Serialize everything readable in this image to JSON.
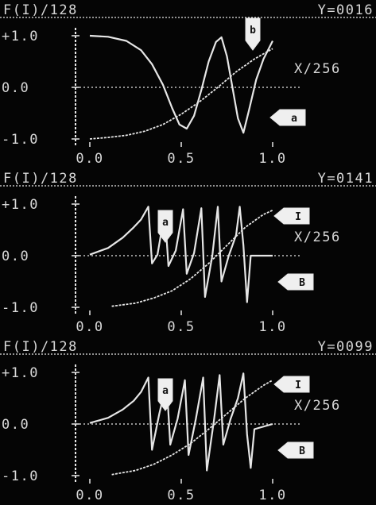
{
  "colors": {
    "background": "#050505",
    "trace": "#e6e6e6",
    "text": "#d8d8d8",
    "marker_fill": "#efefef",
    "marker_text": "#111111"
  },
  "chart_data": [
    {
      "type": "line",
      "header_left": "F(I)/128",
      "header_right": "Y=0016",
      "right_label": "X/256",
      "y_ticks": [
        "+1.0",
        "0.0",
        "-1.0"
      ],
      "x_ticks": [
        "0.0",
        "0.5",
        "1.0"
      ],
      "xlim": [
        0,
        1
      ],
      "ylim": [
        -1,
        1
      ],
      "grid": false,
      "markers": [
        {
          "label": "b"
        },
        {
          "label": "a"
        }
      ],
      "series": [
        {
          "name": "b",
          "role": "signal",
          "points": [
            [
              0,
              1
            ],
            [
              0.1,
              0.98
            ],
            [
              0.2,
              0.9
            ],
            [
              0.28,
              0.72
            ],
            [
              0.34,
              0.45
            ],
            [
              0.4,
              0.05
            ],
            [
              0.45,
              -0.4
            ],
            [
              0.49,
              -0.72
            ],
            [
              0.53,
              -0.8
            ],
            [
              0.57,
              -0.55
            ],
            [
              0.61,
              -0.05
            ],
            [
              0.65,
              0.5
            ],
            [
              0.69,
              0.88
            ],
            [
              0.72,
              0.97
            ],
            [
              0.75,
              0.6
            ],
            [
              0.78,
              0
            ],
            [
              0.81,
              -0.6
            ],
            [
              0.84,
              -0.88
            ],
            [
              0.87,
              -0.45
            ],
            [
              0.91,
              0.15
            ],
            [
              0.95,
              0.55
            ],
            [
              1,
              0.9
            ]
          ]
        },
        {
          "name": "a",
          "role": "ramp",
          "points": [
            [
              0,
              -1
            ],
            [
              0.1,
              -0.97
            ],
            [
              0.2,
              -0.93
            ],
            [
              0.3,
              -0.85
            ],
            [
              0.4,
              -0.72
            ],
            [
              0.5,
              -0.52
            ],
            [
              0.6,
              -0.28
            ],
            [
              0.7,
              0
            ],
            [
              0.8,
              0.3
            ],
            [
              0.9,
              0.55
            ],
            [
              1,
              0.75
            ]
          ]
        }
      ]
    },
    {
      "type": "line",
      "header_left": "F(I)/128",
      "header_right": "Y=0141",
      "right_label": "X/256",
      "y_ticks": [
        "+1.0",
        "0.0",
        "-1.0"
      ],
      "x_ticks": [
        "0.0",
        "0.5",
        "1.0"
      ],
      "xlim": [
        0,
        1
      ],
      "ylim": [
        -1,
        1
      ],
      "grid": false,
      "markers": [
        {
          "label": "a"
        },
        {
          "label": "I"
        },
        {
          "label": "B"
        }
      ],
      "series": [
        {
          "name": "a",
          "role": "signal",
          "points": [
            [
              0,
              0.02
            ],
            [
              0.1,
              0.15
            ],
            [
              0.18,
              0.35
            ],
            [
              0.24,
              0.55
            ],
            [
              0.28,
              0.7
            ],
            [
              0.32,
              0.95
            ],
            [
              0.34,
              -0.15
            ],
            [
              0.37,
              0.02
            ],
            [
              0.41,
              0.85
            ],
            [
              0.43,
              -0.2
            ],
            [
              0.47,
              0.1
            ],
            [
              0.51,
              0.9
            ],
            [
              0.53,
              -0.35
            ],
            [
              0.57,
              0.05
            ],
            [
              0.61,
              0.92
            ],
            [
              0.63,
              -0.8
            ],
            [
              0.67,
              0
            ],
            [
              0.7,
              0.95
            ],
            [
              0.72,
              -0.5
            ],
            [
              0.76,
              0
            ],
            [
              0.8,
              0.4
            ],
            [
              0.82,
              0.95
            ],
            [
              0.84,
              0.2
            ],
            [
              0.86,
              -0.9
            ],
            [
              0.88,
              0
            ],
            [
              1,
              0
            ]
          ]
        },
        {
          "name": "I",
          "role": "ramp",
          "points": [
            [
              0.12,
              -0.98
            ],
            [
              0.25,
              -0.92
            ],
            [
              0.35,
              -0.82
            ],
            [
              0.45,
              -0.68
            ],
            [
              0.55,
              -0.45
            ],
            [
              0.65,
              -0.15
            ],
            [
              0.75,
              0.2
            ],
            [
              0.85,
              0.55
            ],
            [
              0.95,
              0.8
            ],
            [
              1,
              0.88
            ]
          ]
        }
      ]
    },
    {
      "type": "line",
      "header_left": "F(I)/128",
      "header_right": "Y=0099",
      "right_label": "X/256",
      "y_ticks": [
        "+1.0",
        "0.0",
        "-1.0"
      ],
      "x_ticks": [
        "0.0",
        "0.5",
        "1.0"
      ],
      "xlim": [
        0,
        1
      ],
      "ylim": [
        -1,
        1
      ],
      "grid": false,
      "markers": [
        {
          "label": "a"
        },
        {
          "label": "I"
        },
        {
          "label": "B"
        }
      ],
      "series": [
        {
          "name": "a",
          "role": "signal",
          "points": [
            [
              0,
              0.02
            ],
            [
              0.1,
              0.12
            ],
            [
              0.18,
              0.28
            ],
            [
              0.24,
              0.45
            ],
            [
              0.28,
              0.62
            ],
            [
              0.32,
              0.9
            ],
            [
              0.34,
              -0.5
            ],
            [
              0.38,
              0.2
            ],
            [
              0.42,
              0.8
            ],
            [
              0.44,
              -0.4
            ],
            [
              0.48,
              0.1
            ],
            [
              0.52,
              0.85
            ],
            [
              0.54,
              -0.6
            ],
            [
              0.58,
              0.1
            ],
            [
              0.62,
              0.9
            ],
            [
              0.64,
              -0.9
            ],
            [
              0.68,
              0.1
            ],
            [
              0.71,
              0.95
            ],
            [
              0.73,
              -0.4
            ],
            [
              0.77,
              0.1
            ],
            [
              0.81,
              0.5
            ],
            [
              0.84,
              0.98
            ],
            [
              0.86,
              -0.2
            ],
            [
              0.88,
              -0.85
            ],
            [
              0.9,
              -0.1
            ],
            [
              1,
              0
            ]
          ]
        },
        {
          "name": "I",
          "role": "ramp",
          "points": [
            [
              0.12,
              -0.98
            ],
            [
              0.25,
              -0.9
            ],
            [
              0.35,
              -0.78
            ],
            [
              0.45,
              -0.6
            ],
            [
              0.55,
              -0.38
            ],
            [
              0.65,
              -0.1
            ],
            [
              0.75,
              0.2
            ],
            [
              0.85,
              0.5
            ],
            [
              0.95,
              0.75
            ],
            [
              1,
              0.85
            ]
          ]
        }
      ]
    }
  ]
}
